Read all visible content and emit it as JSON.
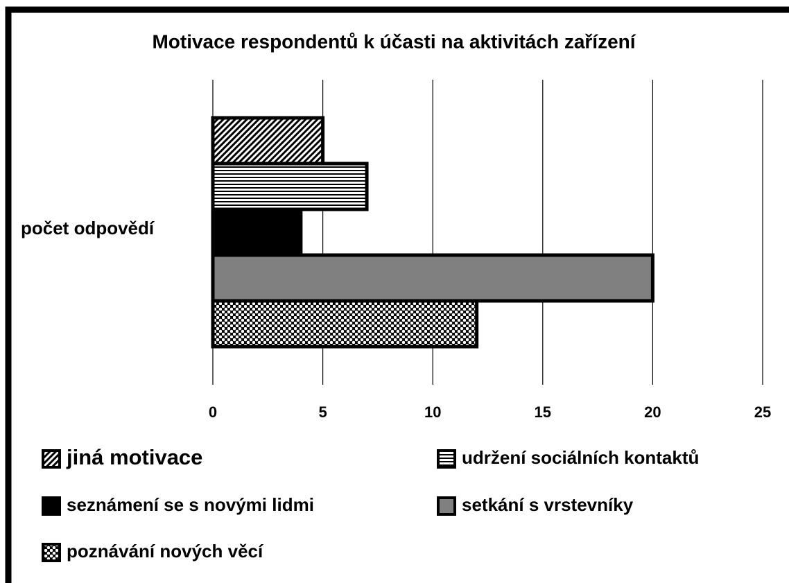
{
  "chart_data": {
    "type": "hbar",
    "title": "Motivace respondentů k účasti na aktivitách zařízení",
    "categories": [
      "počet odpovědí"
    ],
    "series": [
      {
        "name": "jiná motivace",
        "color": "#000000",
        "pattern": "diagonal",
        "values": [
          5
        ]
      },
      {
        "name": "udržení sociálních kontaktů",
        "color": "#000000",
        "pattern": "horizontal",
        "values": [
          7
        ]
      },
      {
        "name": "seznámení se s novými lidmi",
        "color": "#000000",
        "pattern": "solid",
        "values": [
          4
        ]
      },
      {
        "name": "setkání s vrstevníky",
        "color": "#808080",
        "pattern": "solid",
        "values": [
          20
        ]
      },
      {
        "name": "poznávání nových věcí",
        "color": "#000000",
        "pattern": "dots",
        "values": [
          12
        ]
      }
    ],
    "xlim": [
      0,
      25
    ],
    "xticks": [
      0,
      5,
      10,
      15,
      20,
      25
    ],
    "grid": true,
    "legend": "bottom"
  }
}
